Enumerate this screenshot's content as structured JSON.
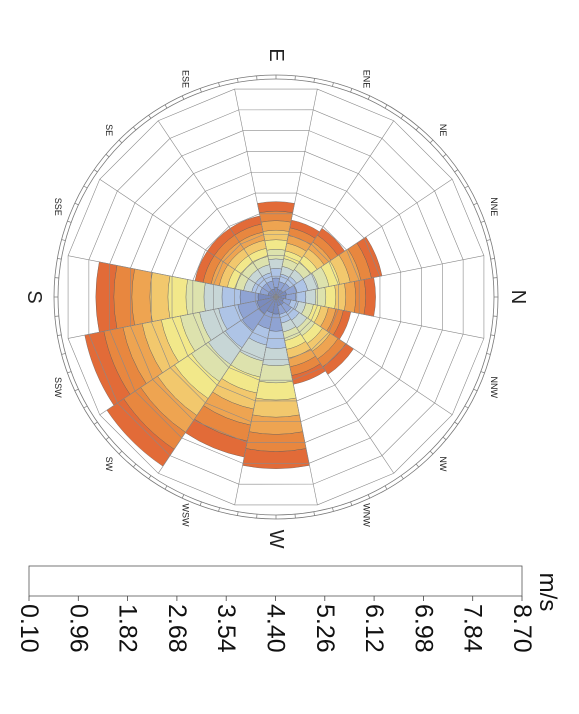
{
  "chart_data": {
    "type": "wind-rose",
    "title": "",
    "unit_label": "m/s",
    "directions": {
      "N": "N",
      "NNE": "NNE",
      "NE": "NE",
      "ENE": "ENE",
      "E": "E",
      "ESE": "ESE",
      "SE": "SE",
      "SSE": "SSE",
      "S": "S",
      "SSW": "SSW",
      "SW": "SW",
      "WSW": "WSW",
      "W": "W",
      "WNW": "WNW",
      "NW": "NW",
      "NNW": "NNW"
    },
    "direction_order": [
      "N",
      "NNE",
      "NE",
      "ENE",
      "E",
      "ESE",
      "SE",
      "SSE",
      "S",
      "SSW",
      "SW",
      "WSW",
      "W",
      "WNW",
      "NW",
      "NNW"
    ],
    "speed_bins": [
      "0.10",
      "0.96",
      "1.82",
      "2.68",
      "3.54",
      "4.40",
      "5.26",
      "6.12",
      "6.98",
      "7.84",
      "8.70"
    ],
    "bin_colors": [
      "#7a8bbd",
      "#8fa3d3",
      "#aec4e6",
      "#c7d6d6",
      "#dde2ad",
      "#f2e88a",
      "#f2c86d",
      "#eea451",
      "#e8873f",
      "#e26b38"
    ],
    "sector_totals": [
      0.47,
      0.51,
      0.39,
      0.37,
      0.45,
      0.39,
      0.39,
      0.39,
      0.85,
      0.92,
      0.96,
      0.77,
      0.81,
      0.42,
      0.44,
      0.36
    ],
    "ring_count": 10,
    "grid": true
  }
}
